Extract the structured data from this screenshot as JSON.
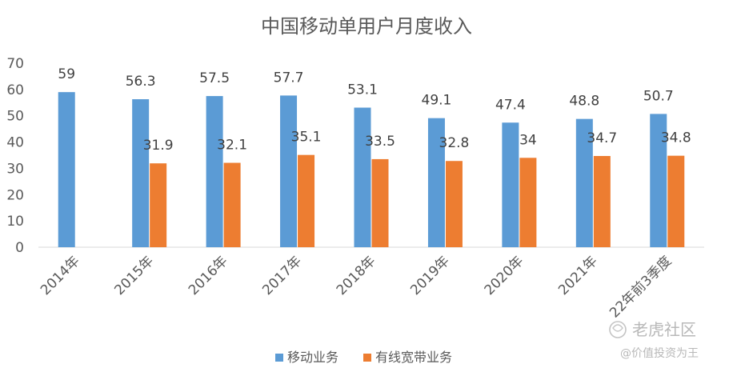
{
  "chart_data": {
    "type": "bar",
    "title": "中国移动单用户月度收入",
    "categories": [
      "2014年",
      "2015年",
      "2016年",
      "2017年",
      "2018年",
      "2019年",
      "2020年",
      "2021年",
      "22年前3季度"
    ],
    "series": [
      {
        "name": "移动业务",
        "color": "#5b9bd5",
        "values": [
          59,
          56.3,
          57.5,
          57.7,
          53.1,
          49.1,
          47.4,
          48.8,
          50.7
        ]
      },
      {
        "name": "有线宽带业务",
        "color": "#ed7d31",
        "values": [
          null,
          31.9,
          32.1,
          35.1,
          33.5,
          32.8,
          34,
          34.7,
          34.8
        ]
      }
    ],
    "ylim": [
      0,
      70
    ],
    "yticks": [
      0,
      10,
      20,
      30,
      40,
      50,
      60,
      70
    ],
    "grid": false,
    "legend_position": "bottom"
  },
  "watermark": {
    "brand": "老虎社区",
    "handle": "@价值投资为王"
  }
}
